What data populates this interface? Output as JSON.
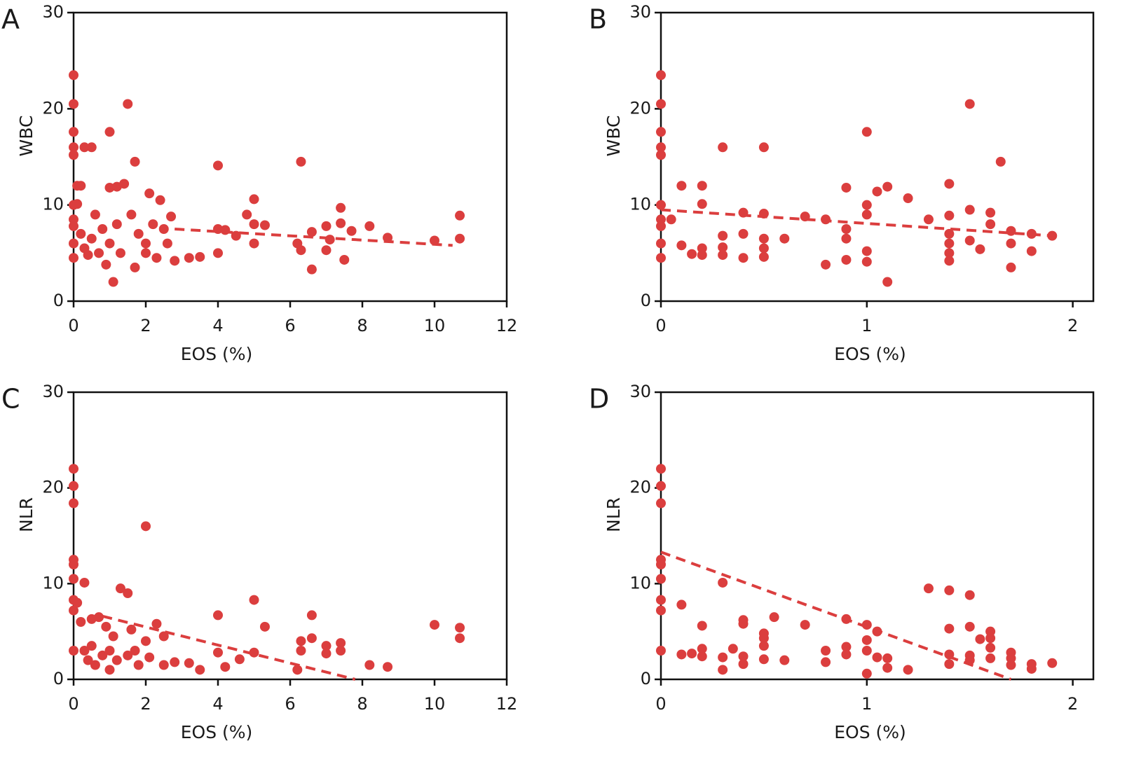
{
  "chart_data": [
    {
      "type": "scatter",
      "panel_label": "A",
      "xlabel": "EOS (%)",
      "ylabel": "WBC",
      "color": "#db3e3e",
      "xlim": [
        0,
        12
      ],
      "xticks": [
        0,
        2,
        4,
        6,
        8,
        10,
        12
      ],
      "ylim": [
        0,
        30
      ],
      "yticks": [
        0,
        10,
        20,
        30
      ],
      "x": [
        0,
        0,
        0,
        0,
        0,
        0,
        0,
        0,
        0,
        0,
        0.1,
        0.2,
        0.1,
        0.3,
        0.5,
        0.2,
        0.3,
        0.4,
        0.5,
        0.6,
        0.7,
        0.8,
        0.9,
        1,
        1,
        1.1,
        1.2,
        1,
        1.2,
        1.3,
        1.4,
        1.5,
        1.6,
        1.7,
        1.7,
        1.8,
        2,
        2,
        2.1,
        2.2,
        2.3,
        2.4,
        2.5,
        2.6,
        2.7,
        2.8,
        3.2,
        3.5,
        4,
        4,
        4,
        4.2,
        4.5,
        4.8,
        5,
        5,
        5,
        5.3,
        6.3,
        6.3,
        6.2,
        6.6,
        6.6,
        7,
        7,
        7.1,
        7.4,
        7.4,
        7.5,
        7.7,
        8.2,
        8.7,
        10,
        10.7,
        10.7
      ],
      "values": [
        23.5,
        20.5,
        17.6,
        16,
        15.2,
        10,
        8.5,
        7.8,
        6,
        4.5,
        12,
        12,
        10.1,
        16,
        16,
        7,
        5.5,
        4.8,
        6.5,
        9,
        5,
        7.5,
        3.8,
        17.6,
        11.8,
        2,
        11.9,
        6,
        8,
        5,
        12.2,
        20.5,
        9,
        14.5,
        3.5,
        7,
        6,
        5,
        11.2,
        8,
        4.5,
        10.5,
        7.5,
        6,
        8.8,
        4.2,
        4.5,
        4.6,
        14.1,
        7.5,
        5,
        7.4,
        6.8,
        9,
        10.6,
        8,
        6,
        7.9,
        14.5,
        5.3,
        6,
        3.3,
        7.2,
        7.8,
        5.3,
        6.4,
        9.7,
        8.1,
        4.3,
        7.3,
        7.8,
        6.6,
        6.3,
        8.9,
        6.5
      ],
      "trend": {
        "x": [
          2.8,
          10.5
        ],
        "y": [
          7.5,
          5.8
        ]
      }
    },
    {
      "type": "scatter",
      "panel_label": "B",
      "xlabel": "EOS (%)",
      "ylabel": "WBC",
      "color": "#db3e3e",
      "xlim": [
        0,
        2.1
      ],
      "xticks": [
        0,
        1,
        2
      ],
      "ylim": [
        0,
        30
      ],
      "yticks": [
        0,
        10,
        20,
        30
      ],
      "x": [
        0,
        0,
        0,
        0,
        0,
        0,
        0,
        0,
        0,
        0,
        0.05,
        0.1,
        0.1,
        0.15,
        0.2,
        0.2,
        0.2,
        0.2,
        0.3,
        0.3,
        0.3,
        0.3,
        0.4,
        0.4,
        0.4,
        0.5,
        0.5,
        0.5,
        0.5,
        0.5,
        0.6,
        0.7,
        0.8,
        0.8,
        0.9,
        0.9,
        0.9,
        0.9,
        1,
        1,
        1,
        1,
        1,
        1.1,
        1.05,
        1.1,
        1.2,
        1.3,
        1.4,
        1.4,
        1.4,
        1.4,
        1.4,
        1.4,
        1.5,
        1.5,
        1.5,
        1.55,
        1.6,
        1.6,
        1.65,
        1.7,
        1.7,
        1.7,
        1.8,
        1.8,
        1.9
      ],
      "values": [
        23.5,
        20.5,
        17.6,
        16,
        15.2,
        10,
        8.5,
        7.8,
        6,
        4.5,
        8.5,
        12,
        5.8,
        4.9,
        12,
        10.1,
        5.5,
        4.8,
        16,
        6.8,
        5.6,
        4.8,
        9.2,
        7,
        4.5,
        16,
        9.1,
        6.5,
        5.5,
        4.6,
        6.5,
        8.8,
        8.5,
        3.8,
        11.8,
        7.5,
        6.5,
        4.3,
        17.6,
        10,
        9,
        5.2,
        4.1,
        2,
        11.4,
        11.9,
        10.7,
        8.5,
        12.2,
        8.9,
        7,
        6,
        5,
        4.2,
        20.5,
        9.5,
        6.3,
        5.4,
        9.2,
        8,
        14.5,
        7.3,
        6,
        3.5,
        7,
        5.2,
        6.8
      ],
      "trend": {
        "x": [
          0,
          1.9
        ],
        "y": [
          9.5,
          6.8
        ]
      }
    },
    {
      "type": "scatter",
      "panel_label": "C",
      "xlabel": "EOS (%)",
      "ylabel": "NLR",
      "color": "#db3e3e",
      "xlim": [
        0,
        12
      ],
      "xticks": [
        0,
        2,
        4,
        6,
        8,
        10,
        12
      ],
      "ylim": [
        0,
        30
      ],
      "yticks": [
        0,
        10,
        20,
        30
      ],
      "x": [
        0,
        0,
        0,
        0,
        0,
        0,
        0,
        0,
        0,
        0.1,
        0.2,
        0.3,
        0.3,
        0.4,
        0.5,
        0.5,
        0.6,
        0.7,
        0.8,
        0.9,
        1,
        1,
        1.1,
        1.2,
        1.3,
        1.5,
        1.5,
        1.6,
        1.7,
        1.8,
        2,
        2,
        2.1,
        2.3,
        2.5,
        2.5,
        2.8,
        3.2,
        3.5,
        4,
        4,
        4.2,
        4.6,
        5,
        5,
        5.3,
        6.2,
        6.3,
        6.3,
        6.6,
        6.6,
        7,
        7,
        7.4,
        7.4,
        8.2,
        8.7,
        10,
        10.7,
        10.7
      ],
      "values": [
        22,
        20.2,
        18.4,
        12.5,
        12,
        10.5,
        8.3,
        7.2,
        3,
        8,
        6,
        10.1,
        3,
        2,
        6.3,
        3.5,
        1.5,
        6.5,
        2.5,
        5.5,
        3,
        1,
        4.5,
        2,
        9.5,
        9,
        2.5,
        5.2,
        3,
        1.5,
        16,
        4,
        2.3,
        5.8,
        4.5,
        1.5,
        1.8,
        1.7,
        1,
        6.7,
        2.8,
        1.3,
        2.1,
        8.3,
        2.8,
        5.5,
        1,
        4,
        3,
        6.7,
        4.3,
        3.5,
        2.7,
        3.8,
        3,
        1.5,
        1.3,
        5.7,
        5.4,
        4.3
      ],
      "trend": {
        "x": [
          0.8,
          7.8
        ],
        "y": [
          6.6,
          0
        ]
      }
    },
    {
      "type": "scatter",
      "panel_label": "D",
      "xlabel": "EOS (%)",
      "ylabel": "NLR",
      "color": "#db3e3e",
      "xlim": [
        0,
        2.1
      ],
      "xticks": [
        0,
        1,
        2
      ],
      "ylim": [
        0,
        30
      ],
      "yticks": [
        0,
        10,
        20,
        30
      ],
      "x": [
        0,
        0,
        0,
        0,
        0,
        0,
        0,
        0,
        0,
        0.1,
        0.1,
        0.15,
        0.2,
        0.2,
        0.2,
        0.3,
        0.3,
        0.3,
        0.35,
        0.4,
        0.4,
        0.4,
        0.4,
        0.5,
        0.5,
        0.5,
        0.5,
        0.55,
        0.6,
        0.7,
        0.8,
        0.8,
        0.9,
        0.9,
        0.9,
        1,
        1,
        1,
        1,
        1.05,
        1.05,
        1.1,
        1.1,
        1.2,
        1.3,
        1.4,
        1.4,
        1.4,
        1.4,
        1.5,
        1.5,
        1.5,
        1.5,
        1.55,
        1.6,
        1.6,
        1.6,
        1.6,
        1.7,
        1.7,
        1.7,
        1.8,
        1.8,
        1.9
      ],
      "values": [
        22,
        20.2,
        18.4,
        12.5,
        12,
        10.5,
        8.3,
        7.2,
        3,
        7.8,
        2.6,
        2.7,
        5.6,
        3.2,
        2.4,
        10.1,
        2.3,
        1,
        3.2,
        6.2,
        5.8,
        2.4,
        1.6,
        4.8,
        4.3,
        3.5,
        2.1,
        6.5,
        2,
        5.7,
        3,
        1.8,
        6.3,
        3.4,
        2.6,
        5.7,
        4.1,
        3,
        0.6,
        5,
        2.3,
        1.2,
        2.2,
        1,
        9.5,
        9.3,
        5.3,
        2.6,
        1.6,
        8.8,
        5.5,
        2.5,
        2,
        4.2,
        5,
        4.3,
        3.3,
        2.2,
        2.8,
        2.2,
        1.5,
        1.6,
        1.1,
        1.7
      ],
      "trend": {
        "x": [
          0,
          1.7
        ],
        "y": [
          13.3,
          0
        ]
      }
    }
  ]
}
